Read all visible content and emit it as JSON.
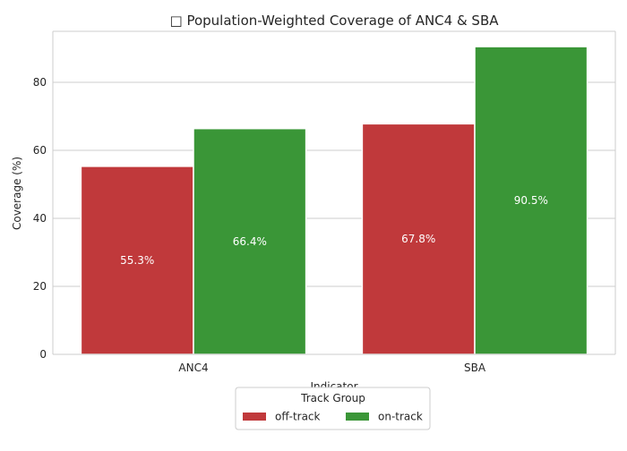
{
  "chart_data": {
    "type": "bar",
    "title": "□ Population-Weighted Coverage of ANC4 & SBA",
    "xlabel": "Indicator",
    "ylabel": "Coverage (%)",
    "categories": [
      "ANC4",
      "SBA"
    ],
    "ylim": [
      0,
      95
    ],
    "yticks": [
      0,
      20,
      40,
      60,
      80
    ],
    "grid": "horizontal",
    "series": [
      {
        "name": "off-track",
        "values": [
          55.3,
          67.8
        ],
        "labels": [
          "55.3%",
          "67.8%"
        ],
        "color": "#c0393b"
      },
      {
        "name": "on-track",
        "values": [
          66.4,
          90.5
        ],
        "labels": [
          "66.4%",
          "90.5%"
        ],
        "color": "#3a9637"
      }
    ],
    "legend": {
      "title": "Track Group",
      "placement": "bottom-center"
    },
    "colors": {
      "grid": "#cccccc",
      "spine": "#cccccc",
      "text": "#262626",
      "bar_label": "#ffffff"
    }
  }
}
